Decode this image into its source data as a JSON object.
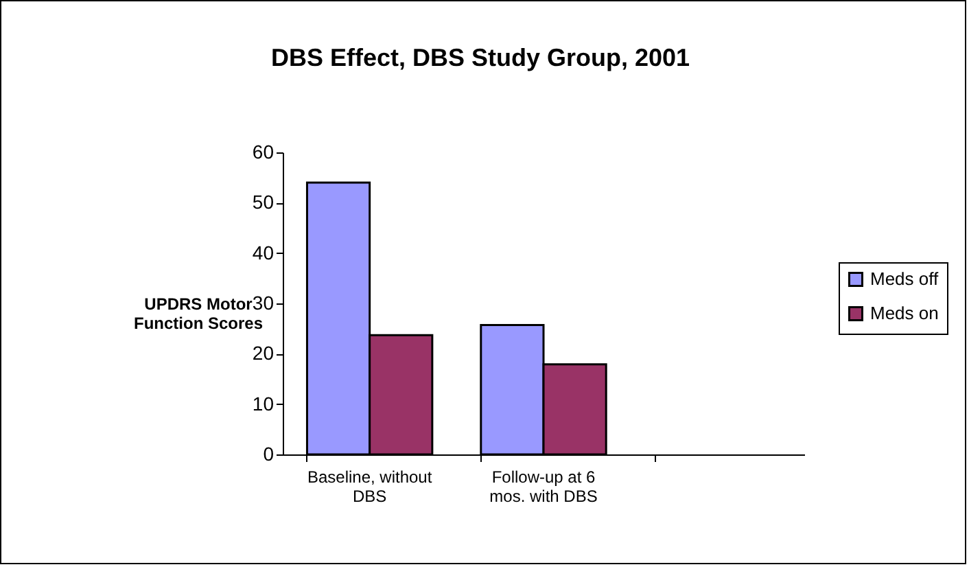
{
  "chart_data": {
    "type": "bar",
    "title": "DBS Effect, DBS Study Group, 2001",
    "ylabel": "UPDRS Motor Function Scores",
    "categories": [
      "Baseline, without DBS",
      "Follow-up at 6 mos. with DBS",
      null
    ],
    "series": [
      {
        "name": "Meds off",
        "color": "#9999ff",
        "values": [
          54,
          25.7,
          null
        ]
      },
      {
        "name": "Meds on",
        "color": "#993366",
        "values": [
          23.7,
          17.9,
          null
        ]
      }
    ],
    "ylim": [
      0,
      60
    ],
    "yticks": [
      0,
      10,
      20,
      30,
      40,
      50,
      60
    ],
    "legend": "right"
  }
}
